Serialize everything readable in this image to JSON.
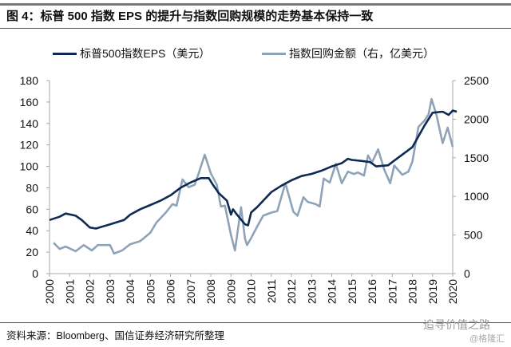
{
  "title": "图 4：标普 500 指数 EPS 的提升与指数回购规模的走势基本保持一致",
  "source": "资料来源：Bloomberg、国信证券经济研究所整理",
  "watermark": {
    "main": "追寻价值之路",
    "sub": "@格隆汇"
  },
  "colors": {
    "eps": "#0f2a52",
    "buyback": "#8fa3b8"
  },
  "chart_data": {
    "type": "line",
    "title": "标普 500 指数 EPS 的提升与指数回购规模的走势基本保持一致",
    "legend_position": "top",
    "x_ticks": [
      "2000",
      "2001",
      "2002",
      "2003",
      "2004",
      "2005",
      "2006",
      "2007",
      "2008",
      "2009",
      "2010",
      "2011",
      "2012",
      "2013",
      "2014",
      "2015",
      "2016",
      "2017",
      "2018",
      "2019",
      "2020"
    ],
    "xlim": [
      2000,
      2020
    ],
    "left_axis": {
      "ylim": [
        0,
        180
      ],
      "ticks": [
        "0",
        "20",
        "40",
        "60",
        "80",
        "100",
        "120",
        "140",
        "160",
        "180"
      ]
    },
    "right_axis": {
      "ylim": [
        0,
        2500
      ],
      "ticks": [
        "0",
        "500",
        "1000",
        "1500",
        "2000",
        "2500"
      ]
    },
    "series": [
      {
        "name": "标普500指数EPS（美元）",
        "axis": "left",
        "x": [
          2000,
          2000.5,
          2000.8,
          2001.3,
          2001.6,
          2002,
          2002.3,
          2003,
          2003.7,
          2004,
          2004.5,
          2005,
          2005.5,
          2006,
          2006.5,
          2007,
          2007.5,
          2007.9,
          2008.1,
          2008.4,
          2008.8,
          2009,
          2009.1,
          2009.3,
          2009.7,
          2009.85,
          2010,
          2010.3,
          2010.6,
          2011,
          2011.5,
          2012,
          2012.5,
          2013,
          2013.5,
          2014,
          2014.5,
          2014.8,
          2015,
          2015.5,
          2015.9,
          2016.2,
          2016.8,
          2017,
          2017.5,
          2018,
          2018.3,
          2018.6,
          2019,
          2019.5,
          2019.8,
          2020,
          2020.2
        ],
        "values": [
          50,
          53,
          56,
          54,
          50,
          43,
          42,
          46,
          50,
          55,
          60,
          64,
          68,
          73,
          80,
          85,
          89,
          89,
          83,
          75,
          68,
          55,
          60,
          55,
          46,
          45,
          57,
          62,
          68,
          76,
          82,
          87,
          91,
          93,
          96,
          100,
          103,
          107,
          106,
          105,
          104,
          100,
          101,
          104,
          111,
          118,
          128,
          138,
          150,
          151,
          148,
          152,
          151
        ]
      },
      {
        "name": "指数回购金额（右，亿美元）",
        "axis": "right",
        "x": [
          2000.2,
          2000.5,
          2000.8,
          2001.3,
          2001.7,
          2002.1,
          2002.4,
          2003,
          2003.2,
          2003.6,
          2004,
          2004.5,
          2005,
          2005.3,
          2005.8,
          2006.1,
          2006.3,
          2006.6,
          2006.9,
          2007.2,
          2007.4,
          2007.7,
          2008,
          2008.3,
          2008.5,
          2008.7,
          2009,
          2009.2,
          2009.5,
          2009.7,
          2009.8,
          2010,
          2010.3,
          2010.6,
          2011,
          2011.3,
          2011.7,
          2012.1,
          2012.3,
          2012.6,
          2012.8,
          2013.2,
          2013.4,
          2013.6,
          2013.9,
          2014.2,
          2014.5,
          2014.8,
          2015.1,
          2015.3,
          2015.6,
          2015.8,
          2016,
          2016.3,
          2016.6,
          2016.9,
          2017.1,
          2017.5,
          2017.8,
          2018,
          2018.3,
          2018.6,
          2018.8,
          2018.95,
          2019.2,
          2019.5,
          2019.75,
          2020
        ],
        "values": [
          400,
          320,
          350,
          290,
          370,
          300,
          370,
          370,
          260,
          300,
          380,
          420,
          530,
          660,
          800,
          900,
          880,
          1220,
          1120,
          1150,
          1300,
          1540,
          1300,
          1150,
          870,
          880,
          500,
          300,
          860,
          450,
          370,
          460,
          610,
          750,
          790,
          810,
          1170,
          800,
          750,
          990,
          930,
          900,
          870,
          1230,
          1180,
          1420,
          1170,
          1320,
          1290,
          1310,
          1270,
          1530,
          1440,
          1610,
          1350,
          1170,
          1400,
          1280,
          1320,
          1450,
          1900,
          1980,
          2060,
          2260,
          2050,
          1690,
          1890,
          1640
        ]
      }
    ]
  }
}
